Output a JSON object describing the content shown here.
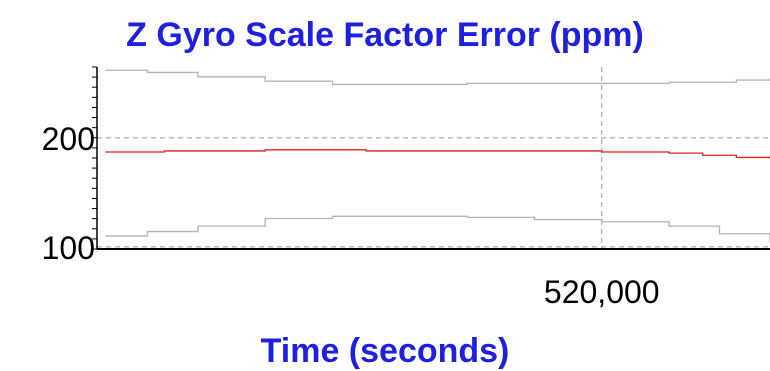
{
  "chart_data": {
    "type": "line",
    "title": "Z Gyro Scale Factor Error (ppm)",
    "xlabel": "Time (seconds)",
    "ylabel": "",
    "xlim": [
      505000,
      525000
    ],
    "ylim": [
      98,
      265
    ],
    "y_ticks": [
      {
        "value": 100,
        "label": "100"
      },
      {
        "value": 200,
        "label": "200"
      }
    ],
    "x_ticks": [
      {
        "value": 520000,
        "label": "520,000"
      }
    ],
    "grid": true,
    "series": [
      {
        "color": "#e0201a",
        "role": "estimate",
        "x": [
          505250,
          507000,
          510000,
          513000,
          516000,
          518000,
          520000,
          522000,
          523000,
          524000,
          525000
        ],
        "y": [
          187,
          188,
          189,
          188,
          188,
          188,
          187,
          186,
          184,
          182,
          181
        ]
      },
      {
        "color": "#b4b4b4",
        "role": "upper bound",
        "x": [
          505250,
          506500,
          508000,
          510000,
          512000,
          514000,
          516000,
          518000,
          520000,
          522000,
          524000,
          525000
        ],
        "y": [
          262,
          260,
          256,
          252,
          249,
          249,
          250,
          250,
          250,
          251,
          253,
          255
        ]
      },
      {
        "color": "#b4b4b4",
        "role": "lower bound",
        "x": [
          505250,
          506500,
          508000,
          510000,
          512000,
          514000,
          516000,
          518000,
          520000,
          522000,
          523500,
          525000
        ],
        "y": [
          110,
          114,
          119,
          126,
          128,
          128,
          127,
          125,
          123,
          119,
          112,
          104
        ]
      }
    ]
  },
  "colors": {
    "title": "#1f1fdf",
    "grid": "#9a9a9a",
    "axis": "#000000",
    "estimate": "#e0201a",
    "bounds": "#b4b4b4"
  }
}
